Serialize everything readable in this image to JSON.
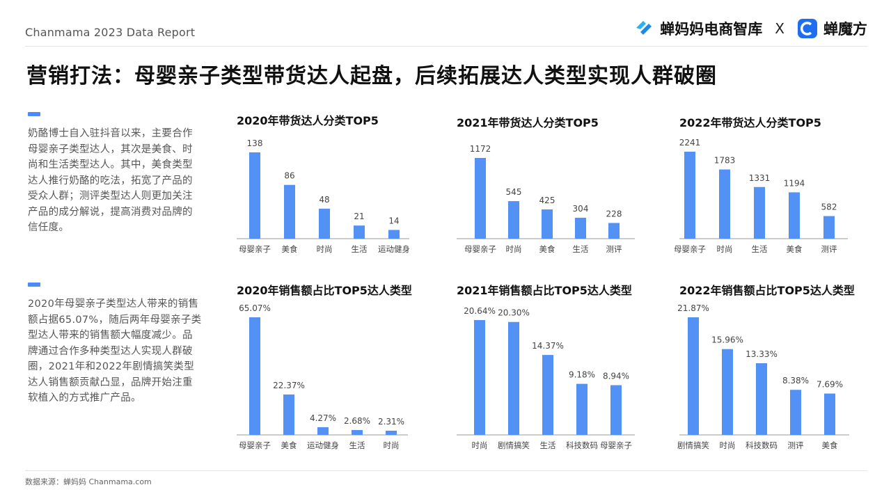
{
  "header": {
    "report_label": "Chanmama 2023 Data Report",
    "brand_left": "蝉妈妈电商智库",
    "brand_sep": "X",
    "brand_right": "蝉魔方"
  },
  "headline": "营销打法：母婴亲子类型带货达人起盘，后续拓展达人类型实现人群破圈",
  "notes": [
    {
      "text": "奶酪博士自入驻抖音以来，主要合作母婴亲子类型达人，其次是美食、时尚和生活类型达人。其中，美食类型达人推行奶酪的吃法，拓宽了产品的受众人群；测评类型达人则更加关注产品的成分解说，提高消费对品牌的信任度。"
    },
    {
      "text": "2020年母婴亲子类型达人带来的销售额占据65.07%，随后两年母婴亲子类型达人带来的销售额大幅度减少。品牌通过合作多种类型达人实现人群破圈，2021年和2022年剧情搞笑类型达人销售额贡献凸显，品牌开始注重软植入的方式推广产品。"
    }
  ],
  "colors": {
    "bar": "#5391f5",
    "accent": "#4e8af7",
    "axis": "#999999"
  },
  "chart_data": [
    {
      "type": "bar",
      "title": "2020年带货达人分类TOP5",
      "categories": [
        "母婴亲子",
        "美食",
        "时尚",
        "生活",
        "运动健身"
      ],
      "values": [
        138,
        86,
        48,
        21,
        14
      ],
      "labels": [
        "138",
        "86",
        "48",
        "21",
        "14"
      ],
      "ylim": [
        0,
        138
      ]
    },
    {
      "type": "bar",
      "title": "2021年带货达人分类TOP5",
      "categories": [
        "母婴亲子",
        "时尚",
        "美食",
        "生活",
        "测评"
      ],
      "values": [
        1172,
        545,
        425,
        304,
        228
      ],
      "labels": [
        "1172",
        "545",
        "425",
        "304",
        "228"
      ],
      "ylim": [
        0,
        1172
      ]
    },
    {
      "type": "bar",
      "title": "2022年带货达人分类TOP5",
      "categories": [
        "母婴亲子",
        "时尚",
        "生活",
        "美食",
        "测评"
      ],
      "values": [
        2241,
        1783,
        1331,
        1194,
        582
      ],
      "labels": [
        "2241",
        "1783",
        "1331",
        "1194",
        "582"
      ],
      "ylim": [
        0,
        2241
      ]
    },
    {
      "type": "bar",
      "title": "2020年销售额占比TOP5达人类型",
      "categories": [
        "母婴亲子",
        "美食",
        "运动健身",
        "生活",
        "时尚"
      ],
      "values": [
        65.07,
        22.37,
        4.27,
        2.68,
        2.31
      ],
      "labels": [
        "65.07%",
        "22.37%",
        "4.27%",
        "2.68%",
        "2.31%"
      ],
      "ylim": [
        0,
        65.07
      ]
    },
    {
      "type": "bar",
      "title": "2021年销售额占比TOP5达人类型",
      "categories": [
        "时尚",
        "剧情搞笑",
        "生活",
        "科技数码",
        "母婴亲子"
      ],
      "values": [
        20.64,
        20.3,
        14.37,
        9.18,
        8.94
      ],
      "labels": [
        "20.64%",
        "20.30%",
        "14.37%",
        "9.18%",
        "8.94%"
      ],
      "ylim": [
        0,
        20.64
      ]
    },
    {
      "type": "bar",
      "title": "2022年销售额占比TOP5达人类型",
      "categories": [
        "剧情搞笑",
        "时尚",
        "科技数码",
        "测评",
        "美食"
      ],
      "values": [
        21.87,
        15.96,
        13.33,
        8.38,
        7.69
      ],
      "labels": [
        "21.87%",
        "15.96%",
        "13.33%",
        "8.38%",
        "7.69%"
      ],
      "ylim": [
        0,
        21.87
      ]
    }
  ],
  "footer": {
    "source": "数据来源：蝉妈妈 Chanmama.com"
  }
}
